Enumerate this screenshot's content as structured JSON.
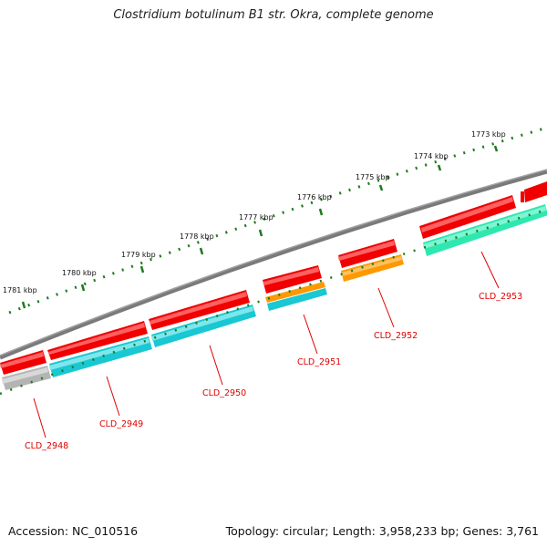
{
  "title": "Clostridium botulinum B1 str. Okra, complete genome",
  "accession": "Accession: NC_010516",
  "topology": "Topology: circular; Length: 3,958,233 bp; Genes: 3,761",
  "scale_ticks": [
    {
      "label": "1773 kbp"
    },
    {
      "label": "1774 kbp"
    },
    {
      "label": "1775 kbp"
    },
    {
      "label": "1776 kbp"
    },
    {
      "label": "1777 kbp"
    },
    {
      "label": "1778 kbp"
    },
    {
      "label": "1779 kbp"
    },
    {
      "label": "1780 kbp"
    },
    {
      "label": "1781 kbp"
    }
  ],
  "genes": [
    {
      "label": "CLD_2953",
      "color": "#2ee8b0"
    },
    {
      "label": "CLD_2952",
      "color": "#ff9900"
    },
    {
      "label": "CLD_2951",
      "color": "#ff9900"
    },
    {
      "label": "CLD_2950",
      "color": "#19c8d2"
    },
    {
      "label": "CLD_2949",
      "color": "#19c8d2"
    },
    {
      "label": "CLD_2948",
      "color": "#b4b4b4"
    }
  ],
  "colors": {
    "backbone": "#7a7a7a",
    "cds": "#f00000",
    "ticks": "#1f7a1f",
    "label": "#e00000"
  }
}
